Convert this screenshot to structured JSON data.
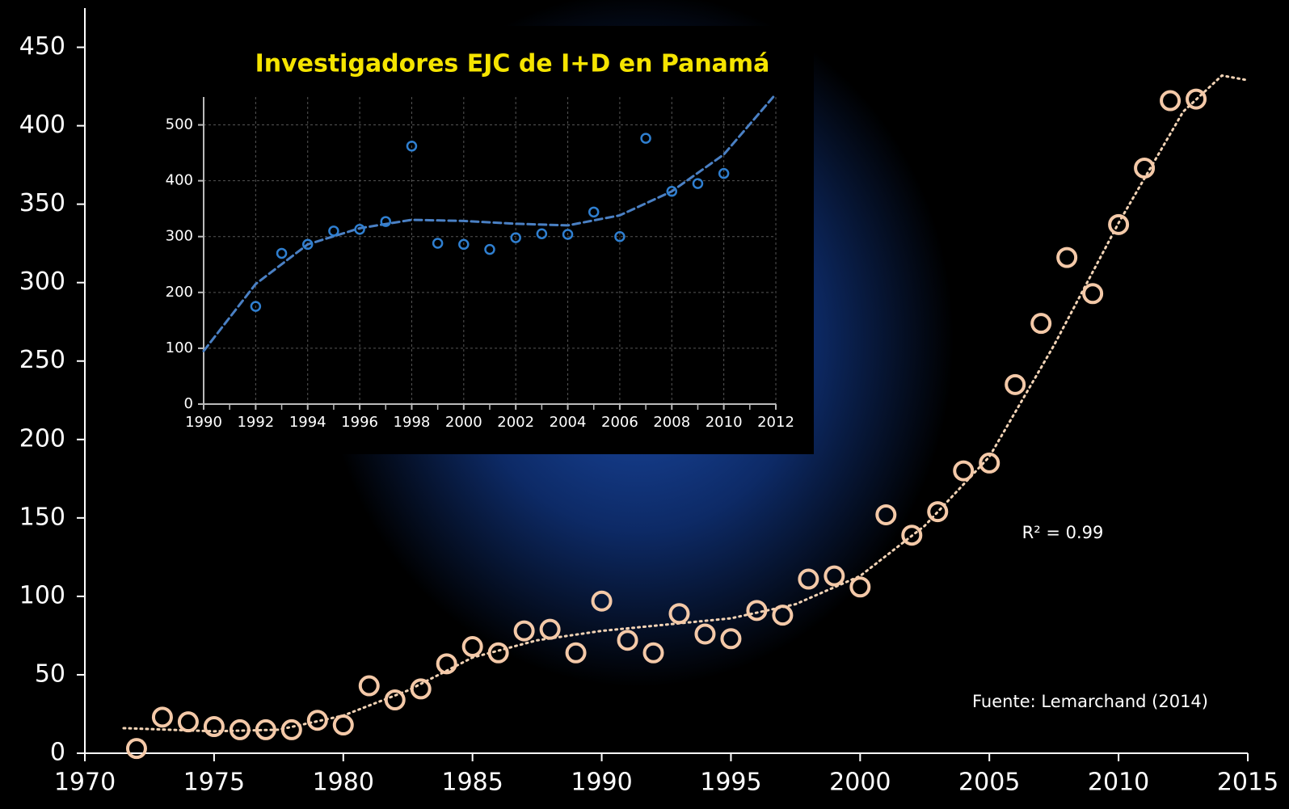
{
  "chart_data": [
    {
      "type": "scatter",
      "x": [
        1972,
        1973,
        1974,
        1975,
        1976,
        1977,
        1978,
        1979,
        1980,
        1981,
        1982,
        1983,
        1984,
        1985,
        1986,
        1987,
        1988,
        1989,
        1990,
        1991,
        1992,
        1993,
        1994,
        1995,
        1996,
        1997,
        1998,
        1999,
        2000,
        2001,
        2002,
        2003,
        2004,
        2005,
        2006,
        2007,
        2008,
        2009,
        2010,
        2011,
        2012,
        2013
      ],
      "values": [
        3,
        23,
        20,
        17,
        15,
        15,
        15,
        21,
        18,
        43,
        34,
        41,
        57,
        68,
        64,
        78,
        79,
        64,
        97,
        72,
        64,
        89,
        76,
        73,
        91,
        88,
        111,
        113,
        106,
        152,
        139,
        154,
        180,
        185,
        235,
        274,
        316,
        293,
        337,
        373,
        416,
        417
      ],
      "color": "#f4c9a8",
      "trendline": {
        "x": [
          1971.5,
          1975,
          1977.5,
          1980,
          1982.5,
          1985,
          1987.5,
          1990,
          1992.5,
          1995,
          1997.5,
          2000,
          2002.5,
          2005,
          2007.5,
          2010,
          2012.5,
          2014,
          2015
        ],
        "values": [
          16,
          14,
          15,
          24,
          40,
          61,
          72,
          78,
          82,
          86,
          95,
          113,
          145,
          189,
          260,
          338,
          409,
          432,
          429
        ],
        "color": "#f2d3b5",
        "style": "dotted"
      },
      "xlim": [
        1970,
        2015
      ],
      "xticks": [
        1970,
        1975,
        1980,
        1985,
        1990,
        1995,
        2000,
        2005,
        2010,
        2015
      ],
      "ylim": [
        0,
        475
      ],
      "yticks": [
        0,
        50,
        100,
        150,
        200,
        250,
        300,
        350,
        400,
        450
      ],
      "grid": false,
      "annotations": [
        "R² = 0.99",
        "Fuente: Lemarchand (2014)"
      ]
    },
    {
      "type": "scatter",
      "title": "Investigadores EJC de I+D en Panamá",
      "x": [
        1992,
        1993,
        1994,
        1995,
        1996,
        1997,
        1998,
        1999,
        2000,
        2001,
        2002,
        2003,
        2004,
        2005,
        2006,
        2007,
        2008,
        2009,
        2010
      ],
      "values": [
        175,
        270,
        286,
        310,
        313,
        327,
        462,
        288,
        286,
        277,
        298,
        305,
        304,
        344,
        300,
        476,
        381,
        395,
        413
      ],
      "color": "#2f7fd0",
      "trendline": {
        "x": [
          1990,
          1992,
          1994,
          1996,
          1998,
          2000,
          2002,
          2004,
          2006,
          2008,
          2010,
          2011.9
        ],
        "values": [
          95,
          215,
          286,
          315,
          330,
          328,
          323,
          320,
          338,
          381,
          447,
          550
        ],
        "color": "#4a80c4",
        "style": "dashed"
      },
      "xlim": [
        1990,
        2012
      ],
      "xticks": [
        1990,
        1992,
        1994,
        1996,
        1998,
        2000,
        2002,
        2004,
        2006,
        2008,
        2010,
        2012
      ],
      "ylim": [
        0,
        550
      ],
      "yticks": [
        0,
        100,
        200,
        300,
        400,
        500
      ],
      "grid": true
    }
  ]
}
